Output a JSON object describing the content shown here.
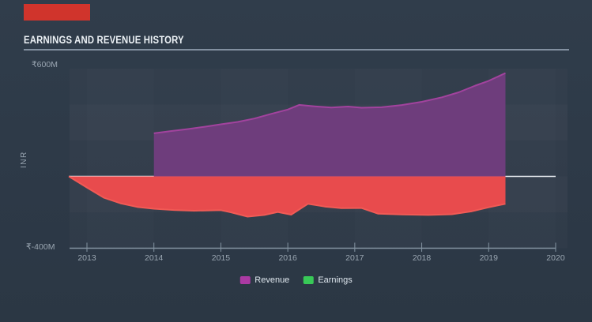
{
  "header": {
    "title": "EARNINGS AND REVENUE HISTORY"
  },
  "marker": {
    "color": "#d0342c"
  },
  "chart_data": {
    "type": "area",
    "title": "EARNINGS AND REVENUE HISTORY",
    "ylabel": "INR",
    "units": "millions INR",
    "y_axis": {
      "top_label": "₹600M",
      "bottom_label": "₹-400M",
      "max": 600,
      "min": -400,
      "band_step": 200
    },
    "x_axis": {
      "ticks": [
        "2013",
        "2014",
        "2015",
        "2016",
        "2017",
        "2018",
        "2019",
        "2020"
      ],
      "min": 2012.72,
      "max": 2020
    },
    "grid": "subtle alternating 200M horizontal bands, white zero line",
    "legend_position": "bottom-center",
    "legend": [
      {
        "name": "Revenue",
        "swatch_color": "#ab3aa3"
      },
      {
        "name": "Earnings",
        "swatch_color": "#38c957"
      }
    ],
    "series": [
      {
        "name": "Revenue",
        "fill": "#713d7e",
        "stroke": "#a2439e",
        "points": [
          [
            2014.0,
            240
          ],
          [
            2014.25,
            252
          ],
          [
            2014.5,
            263
          ],
          [
            2014.75,
            276
          ],
          [
            2015.0,
            290
          ],
          [
            2015.25,
            303
          ],
          [
            2015.5,
            322
          ],
          [
            2015.75,
            348
          ],
          [
            2016.0,
            372
          ],
          [
            2016.17,
            398
          ],
          [
            2016.4,
            390
          ],
          [
            2016.65,
            383
          ],
          [
            2016.9,
            389
          ],
          [
            2017.1,
            382
          ],
          [
            2017.4,
            385
          ],
          [
            2017.7,
            397
          ],
          [
            2018.0,
            415
          ],
          [
            2018.3,
            440
          ],
          [
            2018.55,
            468
          ],
          [
            2018.8,
            505
          ],
          [
            2019.0,
            532
          ],
          [
            2019.25,
            575
          ]
        ]
      },
      {
        "name": "Earnings",
        "fill": "#ee4b4d",
        "stroke": "#f15a55",
        "points": [
          [
            2012.73,
            0
          ],
          [
            2013.0,
            -62
          ],
          [
            2013.25,
            -118
          ],
          [
            2013.5,
            -150
          ],
          [
            2013.75,
            -170
          ],
          [
            2014.0,
            -180
          ],
          [
            2014.3,
            -187
          ],
          [
            2014.6,
            -191
          ],
          [
            2015.0,
            -188
          ],
          [
            2015.15,
            -200
          ],
          [
            2015.4,
            -224
          ],
          [
            2015.65,
            -215
          ],
          [
            2015.85,
            -198
          ],
          [
            2016.05,
            -213
          ],
          [
            2016.3,
            -153
          ],
          [
            2016.55,
            -168
          ],
          [
            2016.8,
            -177
          ],
          [
            2017.1,
            -176
          ],
          [
            2017.35,
            -208
          ],
          [
            2017.7,
            -212
          ],
          [
            2018.1,
            -215
          ],
          [
            2018.45,
            -211
          ],
          [
            2018.75,
            -194
          ],
          [
            2019.0,
            -172
          ],
          [
            2019.25,
            -153
          ]
        ]
      }
    ],
    "colors": {
      "background": "#2e3a48",
      "zero_line": "#e9edf1",
      "axis": "#8494a2",
      "tick_text": "#9aa6b2"
    }
  }
}
